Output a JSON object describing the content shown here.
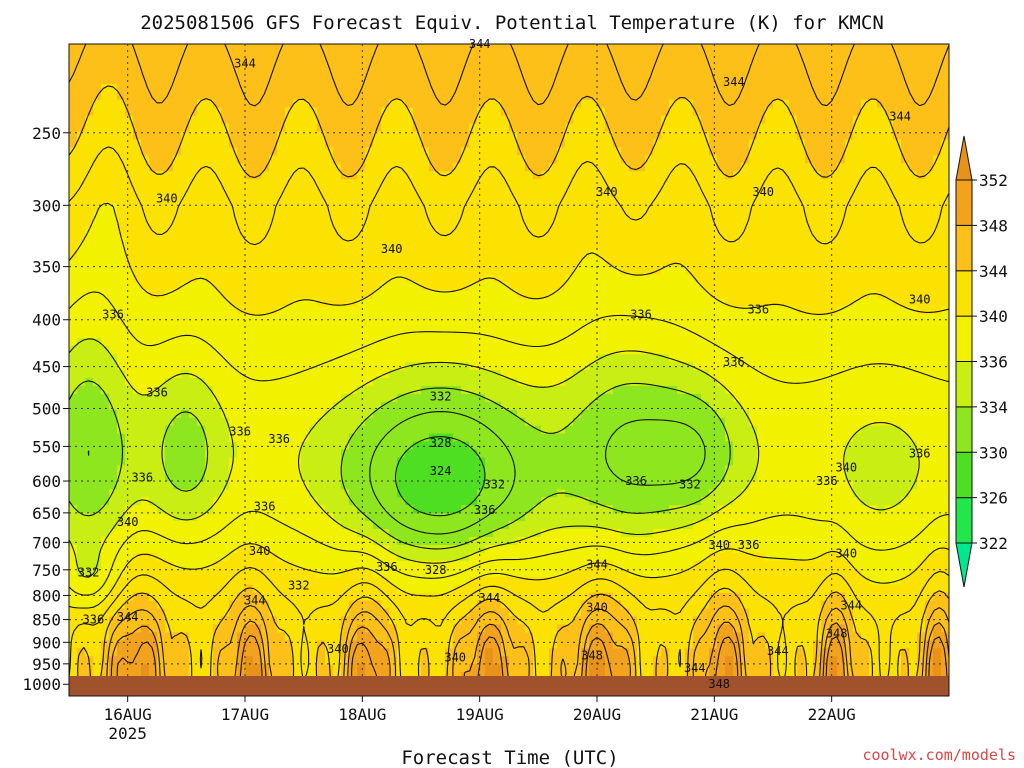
{
  "chart_data": {
    "type": "heatmap",
    "title": "2025081506 GFS Forecast Equiv. Potential Temperature (K) for KMCN",
    "xlabel": "Forecast Time (UTC)",
    "ylabel": "",
    "x_ticks": [
      {
        "label": "16AUG",
        "sublabel": "2025",
        "hour": 18
      },
      {
        "label": "17AUG",
        "sublabel": "",
        "hour": 42
      },
      {
        "label": "18AUG",
        "sublabel": "",
        "hour": 66
      },
      {
        "label": "19AUG",
        "sublabel": "",
        "hour": 90
      },
      {
        "label": "20AUG",
        "sublabel": "",
        "hour": 114
      },
      {
        "label": "21AUG",
        "sublabel": "",
        "hour": 138
      },
      {
        "label": "22AUG",
        "sublabel": "",
        "hour": 162
      }
    ],
    "x_range_hours": [
      6,
      186
    ],
    "y_scale": "log-pressure",
    "y_range_hpa": [
      1030,
      200
    ],
    "y_ticks": [
      250,
      300,
      350,
      400,
      450,
      500,
      550,
      600,
      650,
      700,
      750,
      800,
      850,
      900,
      950,
      1000
    ],
    "colorbar": {
      "levels": [
        322,
        326,
        330,
        334,
        336,
        340,
        344,
        348,
        352
      ],
      "labels": [
        "322",
        "326",
        "330",
        "334",
        "336",
        "340",
        "344",
        "348",
        "352"
      ],
      "colors": [
        "#00e88c",
        "#22e64a",
        "#4ede22",
        "#8ee61e",
        "#c8ee14",
        "#f2f200",
        "#fbe200",
        "#fcc018",
        "#f3a21e",
        "#e8921a"
      ]
    },
    "contour_labels": [
      {
        "text": "344",
        "hour": 42,
        "p": 210
      },
      {
        "text": "344",
        "hour": 90,
        "p": 200
      },
      {
        "text": "344",
        "hour": 142,
        "p": 220
      },
      {
        "text": "344",
        "hour": 176,
        "p": 240
      },
      {
        "text": "340",
        "hour": 26,
        "p": 295
      },
      {
        "text": "340",
        "hour": 72,
        "p": 335
      },
      {
        "text": "340",
        "hour": 116,
        "p": 290
      },
      {
        "text": "340",
        "hour": 148,
        "p": 290
      },
      {
        "text": "340",
        "hour": 180,
        "p": 380
      },
      {
        "text": "336",
        "hour": 15,
        "p": 395
      },
      {
        "text": "336",
        "hour": 147,
        "p": 390
      },
      {
        "text": "336",
        "hour": 123,
        "p": 395
      },
      {
        "text": "336",
        "hour": 142,
        "p": 445
      },
      {
        "text": "336",
        "hour": 24,
        "p": 480
      },
      {
        "text": "336",
        "hour": 41,
        "p": 530
      },
      {
        "text": "336",
        "hour": 21,
        "p": 595
      },
      {
        "text": "336",
        "hour": 49,
        "p": 540
      },
      {
        "text": "336",
        "hour": 122,
        "p": 600
      },
      {
        "text": "336",
        "hour": 161,
        "p": 600
      },
      {
        "text": "336",
        "hour": 180,
        "p": 560
      },
      {
        "text": "336",
        "hour": 46,
        "p": 640
      },
      {
        "text": "336",
        "hour": 91,
        "p": 645
      },
      {
        "text": "336",
        "hour": 71,
        "p": 745
      },
      {
        "text": "336",
        "hour": 145,
        "p": 705
      },
      {
        "text": "336",
        "hour": 11,
        "p": 850
      },
      {
        "text": "332",
        "hour": 82,
        "p": 485
      },
      {
        "text": "328",
        "hour": 82,
        "p": 545
      },
      {
        "text": "324",
        "hour": 82,
        "p": 585
      },
      {
        "text": "332",
        "hour": 93,
        "p": 605
      },
      {
        "text": "332",
        "hour": 133,
        "p": 605
      },
      {
        "text": "332",
        "hour": 53,
        "p": 780
      },
      {
        "text": "332",
        "hour": 10,
        "p": 755
      },
      {
        "text": "328",
        "hour": 81,
        "p": 750
      },
      {
        "text": "340",
        "hour": 18,
        "p": 665
      },
      {
        "text": "340",
        "hour": 45,
        "p": 715
      },
      {
        "text": "340",
        "hour": 139,
        "p": 705
      },
      {
        "text": "340",
        "hour": 165,
        "p": 720
      },
      {
        "text": "340",
        "hour": 165,
        "p": 580
      },
      {
        "text": "340",
        "hour": 61,
        "p": 915
      },
      {
        "text": "340",
        "hour": 85,
        "p": 935
      },
      {
        "text": "340",
        "hour": 114,
        "p": 825
      },
      {
        "text": "344",
        "hour": 18,
        "p": 845
      },
      {
        "text": "344",
        "hour": 44,
        "p": 810
      },
      {
        "text": "344",
        "hour": 92,
        "p": 805
      },
      {
        "text": "344",
        "hour": 114,
        "p": 740
      },
      {
        "text": "344",
        "hour": 134,
        "p": 960
      },
      {
        "text": "344",
        "hour": 151,
        "p": 920
      },
      {
        "text": "344",
        "hour": 166,
        "p": 820
      },
      {
        "text": "348",
        "hour": 113,
        "p": 930
      },
      {
        "text": "348",
        "hour": 163,
        "p": 880
      },
      {
        "text": "348",
        "hour": 139,
        "p": 1000
      }
    ]
  },
  "credit": "coolwx.com/models"
}
